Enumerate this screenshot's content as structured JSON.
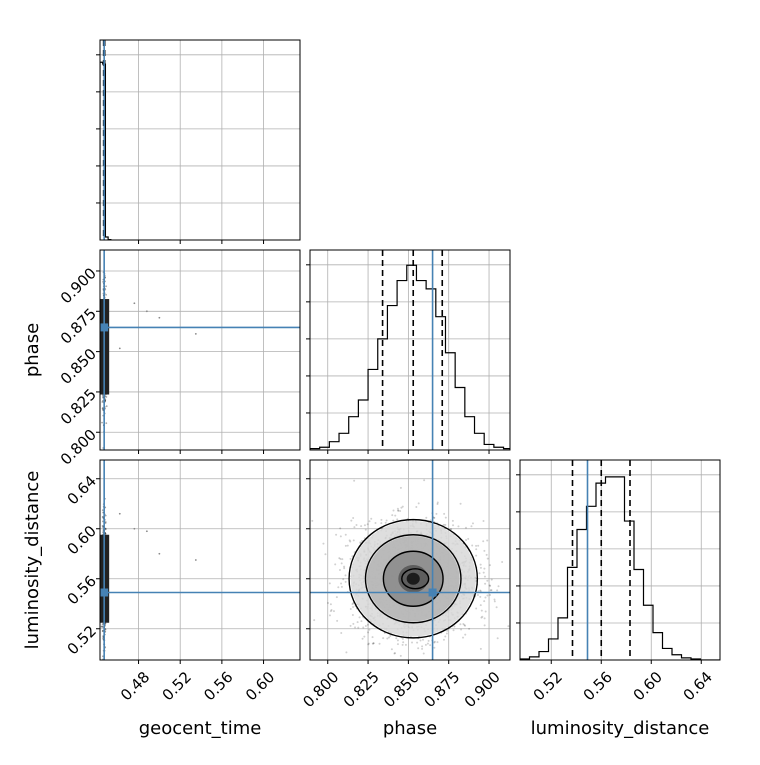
{
  "chart_data": {
    "type": "corner",
    "parameters": [
      "geocent_time",
      "phase",
      "luminosity_distance"
    ],
    "axis_labels": {
      "geocent_time": "geocent_time",
      "phase": "phase",
      "luminosity_distance": "luminosity_distance"
    },
    "truths": {
      "geocent_time": 0.447,
      "phase": 0.865,
      "luminosity_distance": 0.549
    },
    "ranges": {
      "geocent_time": [
        0.443,
        0.635
      ],
      "phase": [
        0.789,
        0.913
      ],
      "luminosity_distance": [
        0.495,
        0.655
      ]
    },
    "ticks": {
      "geocent_time": [
        0.48,
        0.52,
        0.56,
        0.6
      ],
      "phase": [
        0.8,
        0.825,
        0.85,
        0.875,
        0.9
      ],
      "luminosity_distance": [
        0.52,
        0.56,
        0.6,
        0.64
      ]
    },
    "tick_labels": {
      "geocent_time": [
        "0.48",
        "0.52",
        "0.56",
        "0.60"
      ],
      "phase": [
        "0.800",
        "0.825",
        "0.850",
        "0.875",
        "0.900"
      ],
      "luminosity_distance": [
        "0.52",
        "0.56",
        "0.60",
        "0.64"
      ]
    },
    "quantiles": {
      "geocent_time": [
        0.4465,
        0.447,
        0.4475
      ],
      "phase": [
        0.834,
        0.853,
        0.871
      ],
      "luminosity_distance": [
        0.537,
        0.56,
        0.583
      ]
    },
    "histograms": {
      "geocent_time": {
        "bin_edges": [
          0.443,
          0.4456,
          0.4482,
          0.4508,
          0.4534
        ],
        "counts": [
          4800,
          4750,
          80,
          10,
          0
        ],
        "ylim": [
          0,
          5400
        ]
      },
      "phase": {
        "bin_edges": [
          0.789,
          0.795,
          0.801,
          0.807,
          0.813,
          0.819,
          0.825,
          0.831,
          0.837,
          0.843,
          0.849,
          0.855,
          0.861,
          0.867,
          0.873,
          0.879,
          0.885,
          0.891,
          0.897,
          0.903,
          0.909,
          0.913
        ],
        "counts": [
          5,
          10,
          30,
          60,
          120,
          180,
          290,
          400,
          520,
          610,
          665,
          610,
          580,
          480,
          350,
          225,
          120,
          60,
          20,
          10,
          5
        ],
        "ylim": [
          0,
          720
        ]
      },
      "luminosity_distance": {
        "bin_edges": [
          0.495,
          0.5026,
          0.5102,
          0.5178,
          0.5254,
          0.533,
          0.5406,
          0.5482,
          0.5558,
          0.5634,
          0.571,
          0.5786,
          0.5862,
          0.5938,
          0.6014,
          0.609,
          0.6166,
          0.6242,
          0.6318,
          0.6394,
          0.655
        ],
        "counts": [
          5,
          15,
          40,
          100,
          200,
          440,
          620,
          730,
          840,
          870,
          870,
          660,
          430,
          260,
          130,
          55,
          25,
          10,
          5,
          0
        ],
        "ylim": [
          0,
          950
        ]
      }
    },
    "density_2d": {
      "phase_luminosity_distance": {
        "center": [
          0.853,
          0.56
        ],
        "sigma": [
          0.0185,
          0.022
        ],
        "n_samples": 2400
      }
    },
    "outliers_geocent_time": [
      [
        0.476,
        0.88,
        0.6
      ],
      [
        0.5,
        0.871,
        0.58
      ],
      [
        0.535,
        0.861,
        0.575
      ],
      [
        0.462,
        0.852,
        0.612
      ],
      [
        0.488,
        0.875,
        0.598
      ]
    ],
    "grid": true
  }
}
